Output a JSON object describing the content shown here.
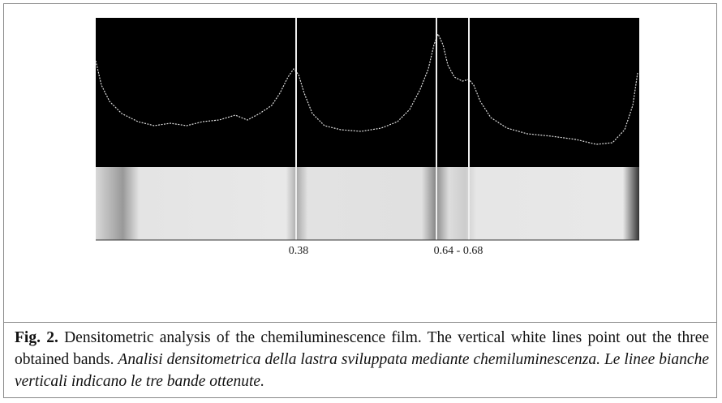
{
  "figure": {
    "labels": [
      "0.38",
      "0.64 - 0.68"
    ]
  },
  "caption": {
    "label": "Fig. 2.",
    "text": "Densitometric analysis of the chemiluminescence film. The vertical white lines point out the three obtained bands.",
    "italic_text": "Analisi densitometrica della lastra sviluppata mediante chemiluminescenza. Le linee bianche verticali indicano le tre bande ottenute."
  }
}
